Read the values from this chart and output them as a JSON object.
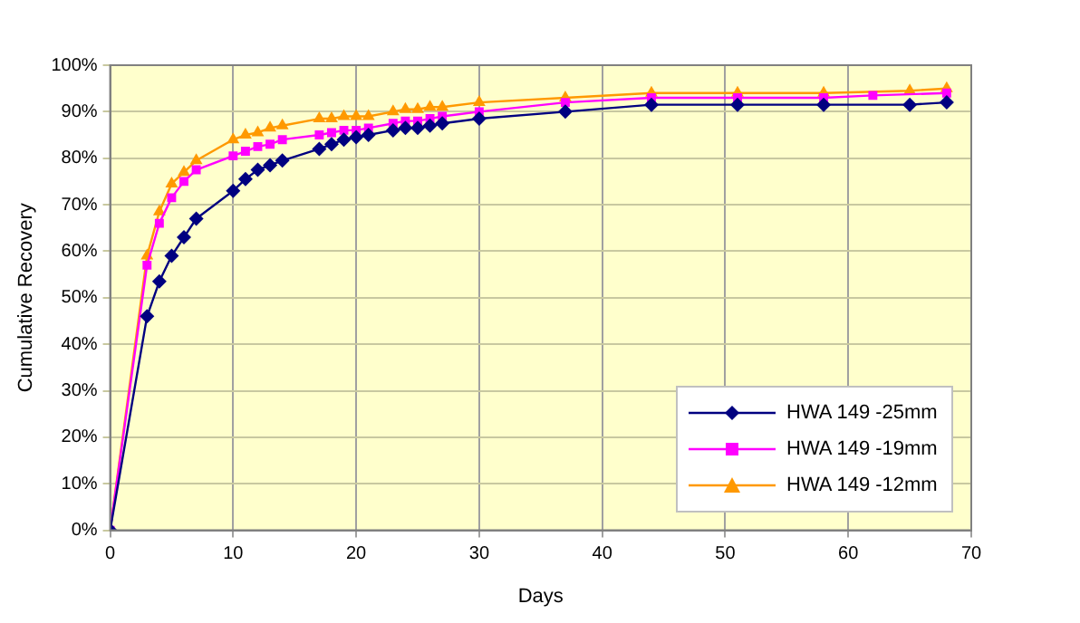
{
  "chart_data": {
    "type": "line",
    "xlabel": "Days",
    "ylabel": "Cumulative Recovery",
    "xlim": [
      0,
      70
    ],
    "xticks": [
      0,
      10,
      20,
      30,
      40,
      50,
      60,
      70
    ],
    "ylim": [
      0,
      100
    ],
    "yticks": [
      {
        "value": 0,
        "label": "0%"
      },
      {
        "value": 10,
        "label": "10%"
      },
      {
        "value": 20,
        "label": "20%"
      },
      {
        "value": 30,
        "label": "30%"
      },
      {
        "value": 40,
        "label": "40%"
      },
      {
        "value": 50,
        "label": "50%"
      },
      {
        "value": 60,
        "label": "60%"
      },
      {
        "value": 70,
        "label": "70%"
      },
      {
        "value": 80,
        "label": "80%"
      },
      {
        "value": 90,
        "label": "90%"
      },
      {
        "value": 100,
        "label": "100%"
      }
    ],
    "grid": true,
    "legend": "bottom right",
    "series": [
      {
        "name": "HWA 149 -25mm",
        "color": "#000080",
        "marker": "diamond",
        "x": [
          0,
          3,
          4,
          5,
          6,
          7,
          10,
          11,
          12,
          13,
          14,
          17,
          18,
          19,
          20,
          21,
          23,
          24,
          25,
          26,
          27,
          30,
          37,
          44,
          51,
          58,
          65,
          68
        ],
        "values": [
          0,
          46,
          53.5,
          59,
          63,
          67,
          73,
          75.5,
          77.5,
          78.5,
          79.5,
          82,
          83,
          84,
          84.5,
          85,
          86,
          86.5,
          86.5,
          87,
          87.5,
          88.5,
          90,
          91.5,
          91.5,
          91.5,
          91.5,
          92
        ]
      },
      {
        "name": "HWA 149 -19mm",
        "color": "#ff00ff",
        "marker": "square",
        "x": [
          0,
          3,
          4,
          5,
          6,
          7,
          10,
          11,
          12,
          13,
          14,
          17,
          18,
          19,
          20,
          21,
          23,
          24,
          25,
          26,
          27,
          30,
          37,
          44,
          51,
          58,
          62,
          68
        ],
        "values": [
          0,
          57,
          66,
          71.5,
          75,
          77.5,
          80.5,
          81.5,
          82.5,
          83,
          84,
          85,
          85.5,
          86,
          86,
          86.5,
          87.5,
          88,
          88,
          88.5,
          89,
          90,
          92,
          93,
          93,
          93,
          93.5,
          94
        ]
      },
      {
        "name": "HWA 149 -12mm",
        "color": "#ff9900",
        "marker": "triangle",
        "x": [
          0,
          3,
          4,
          5,
          6,
          7,
          10,
          11,
          12,
          13,
          14,
          17,
          18,
          19,
          20,
          21,
          23,
          24,
          25,
          26,
          27,
          30,
          37,
          44,
          51,
          58,
          65,
          68
        ],
        "values": [
          0,
          59,
          68.5,
          74.5,
          77,
          79.5,
          84,
          85,
          85.5,
          86.5,
          87,
          88.5,
          88.5,
          89,
          89,
          89,
          90,
          90.5,
          90.5,
          91,
          91,
          92,
          93,
          94,
          94,
          94,
          94.5,
          95
        ]
      }
    ]
  }
}
